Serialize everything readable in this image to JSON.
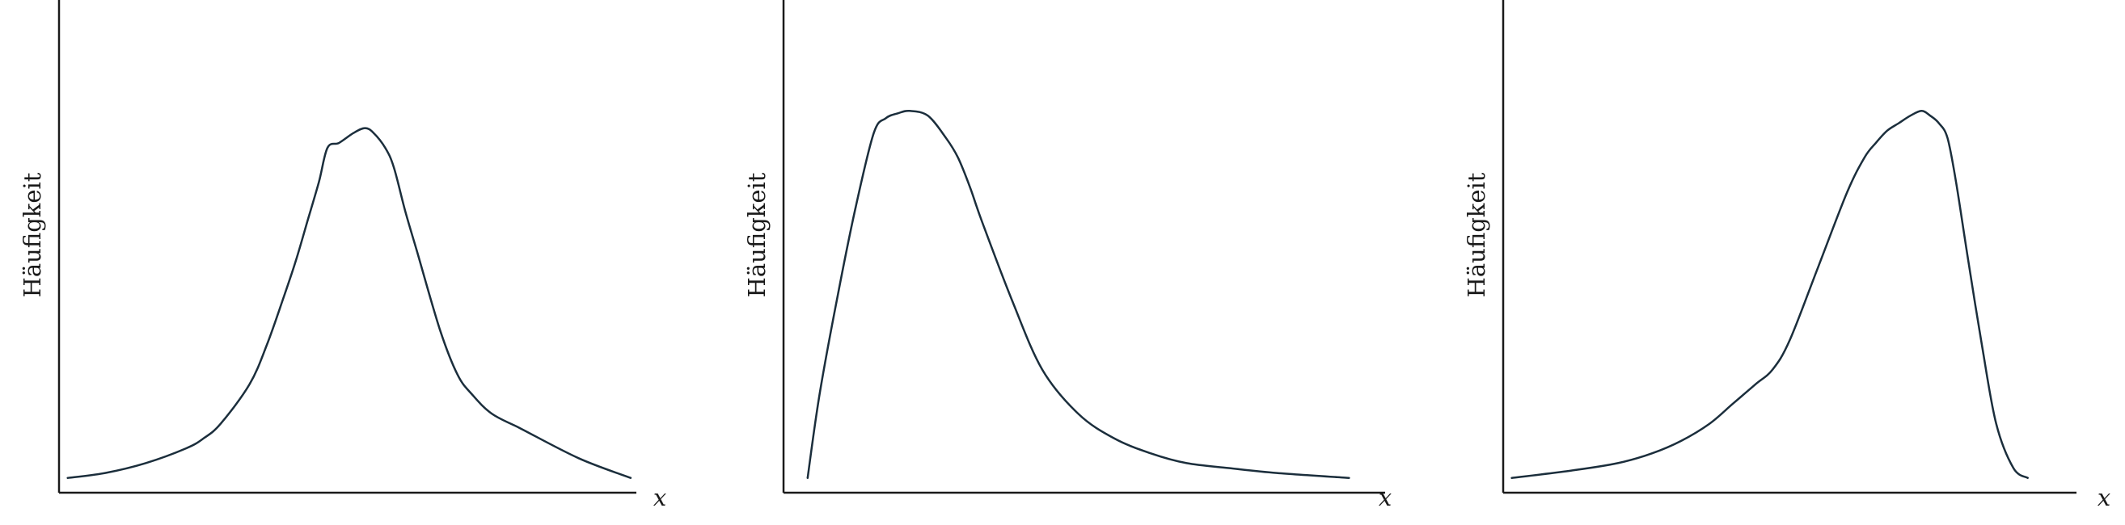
{
  "chart_data": [
    {
      "type": "line",
      "title": "",
      "xlabel": "x",
      "ylabel": "Häufigkeit",
      "shape": "symmetric",
      "xlim": [
        0,
        100
      ],
      "ylim": [
        0,
        100
      ],
      "ticks": false,
      "x": [
        1.5,
        8,
        15,
        22,
        25,
        28,
        33,
        36,
        39,
        41,
        43,
        45,
        46.5,
        48.5,
        51,
        53,
        54.5,
        56.5,
        58,
        60,
        62,
        66,
        69,
        71.5,
        75,
        80,
        90,
        99
      ],
      "values": [
        3,
        4,
        6,
        9,
        11,
        14,
        22,
        30,
        40,
        47,
        55,
        63,
        70,
        71,
        73,
        74,
        73,
        70,
        66,
        57,
        49,
        33,
        24,
        20,
        16,
        13,
        7,
        3
      ]
    },
    {
      "type": "line",
      "title": "",
      "xlabel": "x",
      "ylabel": "Häufigkeit",
      "shape": "right-skewed",
      "xlim": [
        0,
        100
      ],
      "ylim": [
        0,
        100
      ],
      "ticks": false,
      "x": [
        4,
        6,
        9,
        12,
        15,
        17,
        19,
        21,
        24,
        27,
        29,
        31,
        33,
        38,
        43,
        49,
        55,
        61,
        67,
        74,
        82,
        94
      ],
      "values": [
        3,
        20,
        40,
        58,
        73,
        76,
        77,
        77.5,
        76.5,
        72,
        68,
        62,
        55,
        39,
        25,
        16,
        11,
        8,
        6,
        5,
        4,
        3
      ]
    },
    {
      "type": "line",
      "title": "",
      "xlabel": "x",
      "ylabel": "Häufigkeit",
      "shape": "left-skewed",
      "xlim": [
        0,
        100
      ],
      "ylim": [
        0,
        100
      ],
      "ticks": false,
      "x": [
        1.5,
        12,
        20,
        26,
        31,
        36,
        40,
        44,
        47,
        50,
        55,
        60,
        63,
        65,
        67,
        69,
        71,
        73,
        74.5,
        76,
        77.5,
        79,
        81,
        83.5,
        86,
        89,
        91.5
      ],
      "values": [
        3,
        4.5,
        6,
        8,
        10.5,
        14,
        18,
        22,
        25,
        31,
        46,
        61,
        68,
        71,
        73.5,
        75,
        76.5,
        77.5,
        76.5,
        75,
        72,
        63,
        48,
        30,
        14,
        5,
        3
      ]
    }
  ]
}
